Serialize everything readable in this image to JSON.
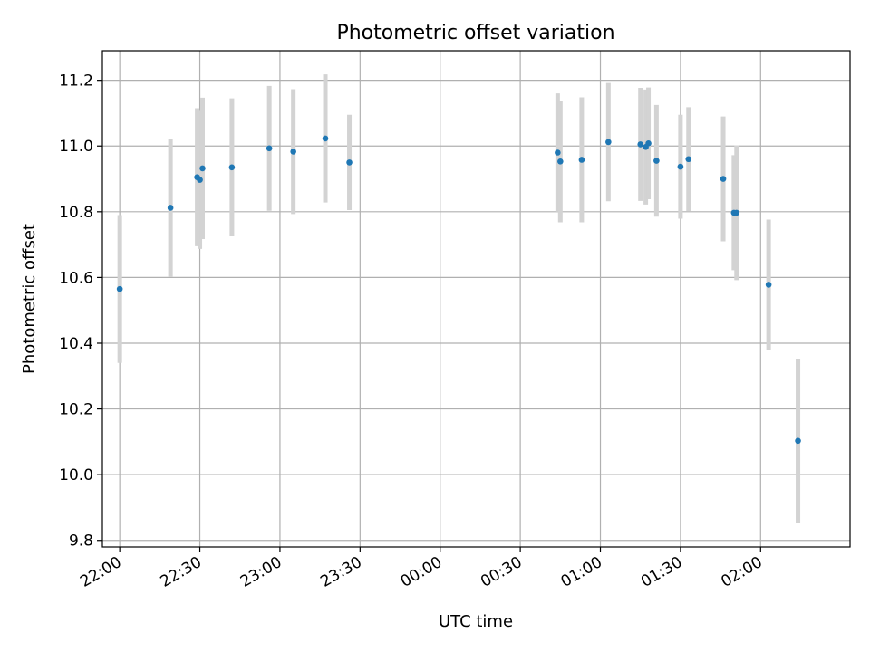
{
  "chart_data": {
    "type": "scatter",
    "title": "Photometric offset variation",
    "xlabel": "UTC time",
    "ylabel": "Photometric offset",
    "x_axis": "time",
    "xlim_minutes_from_2200": [
      -6.5,
      273.5
    ],
    "ylim": [
      9.78,
      11.29
    ],
    "grid": true,
    "x_ticks": [
      {
        "label": "22:00",
        "minutes": 0
      },
      {
        "label": "22:30",
        "minutes": 30
      },
      {
        "label": "23:00",
        "minutes": 60
      },
      {
        "label": "23:30",
        "minutes": 90
      },
      {
        "label": "00:00",
        "minutes": 120
      },
      {
        "label": "00:30",
        "minutes": 150
      },
      {
        "label": "01:00",
        "minutes": 180
      },
      {
        "label": "01:30",
        "minutes": 210
      },
      {
        "label": "02:00",
        "minutes": 240
      }
    ],
    "y_ticks": [
      {
        "label": "9.8",
        "value": 9.8
      },
      {
        "label": "10.0",
        "value": 10.0
      },
      {
        "label": "10.2",
        "value": 10.2
      },
      {
        "label": "10.4",
        "value": 10.4
      },
      {
        "label": "10.6",
        "value": 10.6
      },
      {
        "label": "10.8",
        "value": 10.8
      },
      {
        "label": "11.0",
        "value": 11.0
      },
      {
        "label": "11.2",
        "value": 11.2
      }
    ],
    "marker_color": "#1f77b4",
    "errorbar_color": "#d3d3d3",
    "points": [
      {
        "time": "22:00",
        "y": 10.565,
        "err": 0.225
      },
      {
        "time": "22:19",
        "y": 10.812,
        "err": 0.21
      },
      {
        "time": "22:29",
        "y": 10.905,
        "err": 0.21
      },
      {
        "time": "22:30",
        "y": 10.897,
        "err": 0.21
      },
      {
        "time": "22:31",
        "y": 10.932,
        "err": 0.215
      },
      {
        "time": "22:42",
        "y": 10.935,
        "err": 0.21
      },
      {
        "time": "22:56",
        "y": 10.993,
        "err": 0.19
      },
      {
        "time": "23:05",
        "y": 10.983,
        "err": 0.19
      },
      {
        "time": "23:17",
        "y": 11.023,
        "err": 0.195
      },
      {
        "time": "23:26",
        "y": 10.95,
        "err": 0.145
      },
      {
        "time": "00:44",
        "y": 10.98,
        "err": 0.18
      },
      {
        "time": "00:45",
        "y": 10.953,
        "err": 0.185
      },
      {
        "time": "00:53",
        "y": 10.958,
        "err": 0.19
      },
      {
        "time": "01:03",
        "y": 11.012,
        "err": 0.18
      },
      {
        "time": "01:15",
        "y": 11.005,
        "err": 0.172
      },
      {
        "time": "01:17",
        "y": 10.997,
        "err": 0.175
      },
      {
        "time": "01:18",
        "y": 11.008,
        "err": 0.17
      },
      {
        "time": "01:21",
        "y": 10.955,
        "err": 0.17
      },
      {
        "time": "01:30",
        "y": 10.937,
        "err": 0.158
      },
      {
        "time": "01:33",
        "y": 10.96,
        "err": 0.158
      },
      {
        "time": "01:46",
        "y": 10.9,
        "err": 0.19
      },
      {
        "time": "01:50",
        "y": 10.797,
        "err": 0.175
      },
      {
        "time": "01:51",
        "y": 10.797,
        "err": 0.205
      },
      {
        "time": "02:03",
        "y": 10.578,
        "err": 0.198
      },
      {
        "time": "02:14",
        "y": 10.103,
        "err": 0.25
      }
    ]
  }
}
